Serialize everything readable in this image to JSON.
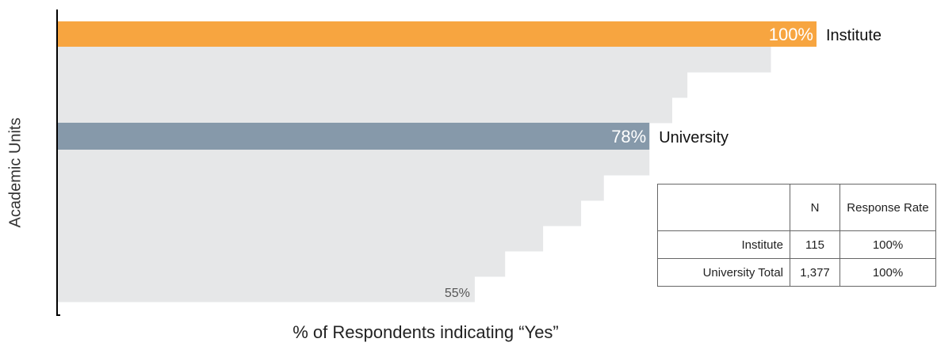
{
  "chart_data": {
    "type": "bar",
    "orientation": "horizontal",
    "xlabel": "% of Respondents indicating “Yes”",
    "ylabel": "Academic Units",
    "xlim": [
      0,
      100
    ],
    "categories": [
      "Institute",
      "",
      "",
      "",
      "University",
      "",
      "",
      "",
      "",
      "",
      "",
      ""
    ],
    "values": [
      100,
      94,
      83,
      81,
      78,
      78,
      72,
      69,
      64,
      59,
      55,
      55
    ],
    "highlight": [
      {
        "index": 0,
        "label": "Institute",
        "value_label": "100%",
        "color": "#f7a540"
      },
      {
        "index": 4,
        "label": "University",
        "value_label": "78%",
        "color": "#8699aa"
      }
    ],
    "min_value_label": "55%",
    "colors": {
      "bar": "#e6e7e8",
      "axis": "#000000"
    }
  },
  "table": {
    "headers": [
      "",
      "N",
      "Response Rate"
    ],
    "rows": [
      [
        "Institute",
        "115",
        "100%"
      ],
      [
        "University Total",
        "1,377",
        "100%"
      ]
    ]
  }
}
